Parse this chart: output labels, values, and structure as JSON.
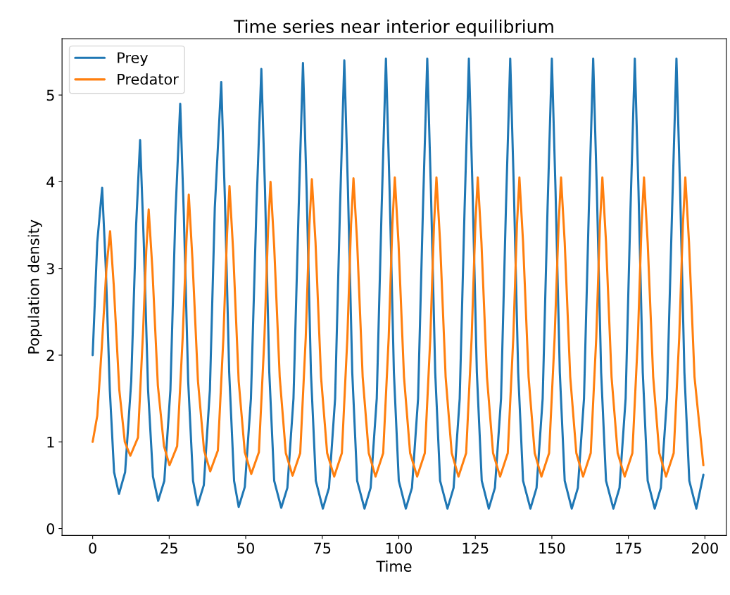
{
  "chart_data": {
    "type": "line",
    "title": "Time series near interior equilibrium",
    "xlabel": "Time",
    "ylabel": "Population density",
    "xlim": [
      -10,
      207
    ],
    "xticks": [
      0,
      25,
      50,
      75,
      100,
      125,
      150,
      175,
      200
    ],
    "ylim": [
      -0.08,
      5.65
    ],
    "yticks": [
      0,
      1,
      2,
      3,
      4,
      5
    ],
    "legend": "top left",
    "grid": false,
    "series": [
      {
        "name": "Prey",
        "color": "#1f77b4",
        "x": [
          0,
          1.5,
          3.1,
          4.3,
          5.6,
          7.0,
          8.6,
          10.6,
          12.6,
          14.2,
          15.5,
          16.7,
          18.1,
          19.7,
          21.4,
          23.4,
          25.4,
          27.0,
          28.6,
          29.8,
          31.2,
          32.8,
          34.3,
          36.3,
          38.3,
          39.9,
          42.0,
          43.2,
          44.6,
          46.2,
          47.7,
          49.7,
          51.7,
          53.5,
          55.1,
          56.3,
          57.7,
          59.3,
          61.6,
          63.6,
          65.6,
          67.3,
          68.7,
          69.9,
          71.3,
          72.9,
          75.2,
          77.2,
          79.2,
          80.8,
          82.2,
          83.4,
          84.8,
          86.4,
          88.8,
          90.8,
          92.8,
          94.4,
          95.8,
          97.0,
          98.4,
          100.0,
          102.3,
          104.3,
          106.3,
          107.9,
          109.3,
          110.5,
          111.9,
          113.5,
          115.9,
          117.9,
          119.9,
          121.5,
          122.9,
          124.1,
          125.5,
          127.1,
          129.4,
          131.4,
          133.4,
          135.0,
          136.4,
          137.6,
          139.0,
          140.6,
          143.0,
          145.0,
          147.0,
          148.6,
          150.0,
          151.2,
          152.6,
          154.2,
          156.5,
          158.5,
          160.5,
          162.1,
          163.5,
          164.7,
          166.1,
          167.7,
          170.1,
          172.1,
          174.1,
          175.7,
          177.1,
          178.3,
          179.7,
          181.3,
          183.6,
          185.6,
          187.6,
          189.3,
          190.7,
          191.9,
          193.3,
          194.9,
          197.2,
          199.5
        ],
        "values": [
          2.0,
          3.3,
          3.93,
          3.0,
          1.6,
          0.65,
          0.4,
          0.65,
          1.7,
          3.5,
          4.48,
          3.3,
          1.6,
          0.6,
          0.32,
          0.55,
          1.6,
          3.6,
          4.9,
          3.6,
          1.7,
          0.55,
          0.27,
          0.5,
          1.6,
          3.7,
          5.15,
          3.8,
          1.8,
          0.55,
          0.25,
          0.48,
          1.5,
          3.7,
          5.3,
          3.9,
          1.8,
          0.55,
          0.24,
          0.47,
          1.5,
          3.7,
          5.37,
          3.9,
          1.8,
          0.55,
          0.23,
          0.47,
          1.5,
          3.7,
          5.4,
          3.9,
          1.8,
          0.55,
          0.23,
          0.47,
          1.5,
          3.7,
          5.42,
          3.9,
          1.8,
          0.55,
          0.23,
          0.47,
          1.5,
          3.7,
          5.42,
          3.9,
          1.8,
          0.55,
          0.23,
          0.47,
          1.5,
          3.7,
          5.42,
          3.9,
          1.8,
          0.55,
          0.23,
          0.47,
          1.5,
          3.7,
          5.42,
          3.9,
          1.8,
          0.55,
          0.23,
          0.47,
          1.5,
          3.7,
          5.42,
          3.9,
          1.8,
          0.55,
          0.23,
          0.47,
          1.5,
          3.7,
          5.42,
          3.9,
          1.8,
          0.55,
          0.23,
          0.47,
          1.5,
          3.7,
          5.42,
          3.9,
          1.8,
          0.55,
          0.23,
          0.47,
          1.5,
          3.7,
          5.42,
          3.9,
          1.8,
          0.55,
          0.23,
          0.62
        ]
      },
      {
        "name": "Predator",
        "color": "#ff7f0e",
        "x": [
          0,
          1.5,
          3.0,
          4.5,
          5.7,
          6.9,
          8.7,
          10.5,
          12.3,
          14.8,
          16.5,
          17.5,
          18.3,
          19.5,
          21.3,
          23.3,
          25.1,
          27.6,
          29.4,
          30.6,
          31.4,
          32.6,
          34.4,
          36.4,
          38.4,
          40.9,
          42.7,
          43.9,
          44.7,
          45.9,
          47.7,
          49.7,
          51.8,
          54.3,
          56.1,
          57.3,
          58.1,
          59.3,
          61.1,
          63.1,
          65.3,
          67.8,
          69.6,
          70.8,
          71.6,
          72.8,
          74.6,
          76.6,
          78.9,
          81.4,
          83.2,
          84.4,
          85.2,
          86.4,
          88.2,
          90.2,
          92.4,
          94.9,
          96.7,
          97.9,
          98.7,
          99.9,
          101.7,
          103.7,
          106.0,
          108.5,
          110.3,
          111.5,
          112.3,
          113.5,
          115.3,
          117.3,
          119.5,
          122.0,
          123.8,
          125.0,
          125.8,
          127.0,
          128.8,
          130.8,
          133.1,
          135.6,
          137.4,
          138.6,
          139.4,
          140.6,
          142.4,
          144.4,
          146.6,
          149.1,
          150.9,
          152.2,
          153.0,
          154.2,
          156.0,
          158.0,
          160.2,
          162.7,
          164.5,
          165.7,
          166.5,
          167.7,
          169.5,
          171.5,
          173.8,
          176.3,
          178.1,
          179.3,
          180.1,
          181.3,
          183.1,
          185.1,
          187.3,
          189.8,
          191.6,
          192.8,
          193.6,
          194.8,
          196.6,
          199.5
        ],
        "values": [
          1.0,
          1.3,
          2.1,
          3.0,
          3.43,
          2.8,
          1.6,
          1.0,
          0.84,
          1.05,
          2.3,
          3.2,
          3.68,
          3.0,
          1.65,
          0.95,
          0.73,
          0.95,
          2.2,
          3.3,
          3.85,
          3.1,
          1.7,
          0.9,
          0.66,
          0.9,
          2.2,
          3.4,
          3.95,
          3.2,
          1.7,
          0.88,
          0.63,
          0.88,
          2.2,
          3.45,
          4.0,
          3.25,
          1.75,
          0.87,
          0.61,
          0.87,
          2.2,
          3.5,
          4.03,
          3.3,
          1.75,
          0.87,
          0.6,
          0.87,
          2.2,
          3.5,
          4.04,
          3.3,
          1.75,
          0.87,
          0.6,
          0.87,
          2.2,
          3.5,
          4.05,
          3.3,
          1.75,
          0.87,
          0.6,
          0.87,
          2.2,
          3.5,
          4.05,
          3.3,
          1.75,
          0.87,
          0.6,
          0.87,
          2.2,
          3.5,
          4.05,
          3.3,
          1.75,
          0.87,
          0.6,
          0.87,
          2.2,
          3.5,
          4.05,
          3.3,
          1.75,
          0.87,
          0.6,
          0.87,
          2.2,
          3.5,
          4.05,
          3.3,
          1.75,
          0.87,
          0.6,
          0.87,
          2.2,
          3.5,
          4.05,
          3.3,
          1.75,
          0.87,
          0.6,
          0.87,
          2.2,
          3.5,
          4.05,
          3.3,
          1.75,
          0.87,
          0.6,
          0.87,
          2.2,
          3.5,
          4.05,
          3.3,
          1.75,
          0.73
        ]
      }
    ]
  }
}
